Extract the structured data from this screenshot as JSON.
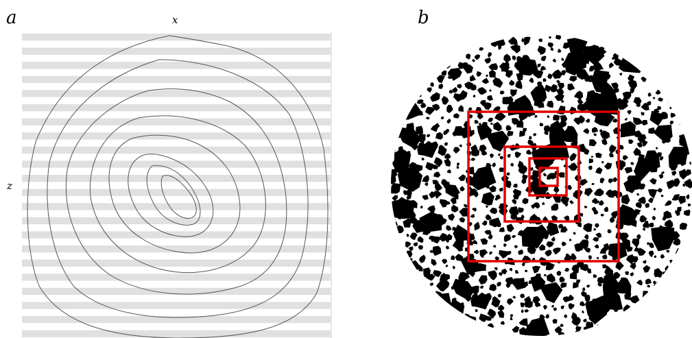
{
  "figure": {
    "panel_a": {
      "label": "a",
      "x_axis_label": "x",
      "z_axis_label": "z",
      "stripe_color": "#e0e0e0",
      "line_color": "#555555"
    },
    "panel_b": {
      "label": "b",
      "particle_color": "#000000",
      "box_color": "#e00000",
      "nested_boxes": 4
    }
  }
}
